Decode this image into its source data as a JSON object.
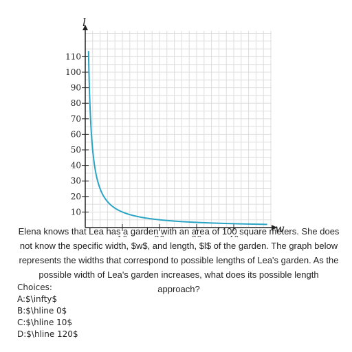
{
  "chart_data": {
    "type": "line",
    "xlabel": "w",
    "ylabel": "l",
    "xlim": [
      0,
      50
    ],
    "ylim": [
      0,
      115
    ],
    "x_ticks": [
      10,
      20,
      30,
      40
    ],
    "y_ticks": [
      10,
      20,
      30,
      40,
      50,
      60,
      70,
      80,
      90,
      100,
      110
    ],
    "grid": true,
    "series": [
      {
        "function": "l = 100 / w",
        "x_min": 0.88,
        "x_max": 49,
        "color": "#2aa4c4"
      }
    ]
  },
  "question": {
    "text": "Elena knows that Lea has a garden with an area of 100 square meters. She does not know the specific width, $w$, and length, $l$ of the garden. The graph below represents the widths that correspond to possible lengths of Lea's garden. As the possible width of Lea's garden increases, what does its possible length approach?",
    "choices_label": "Choices:",
    "choices": [
      "A:$\\infty$",
      "B:$\\hline 0$",
      "C:$\\hline 10$",
      "D:$\\hline 120$"
    ]
  },
  "colors": {
    "grid": "#dddddd",
    "axis": "#222222",
    "curve": "#2aa4c4"
  }
}
